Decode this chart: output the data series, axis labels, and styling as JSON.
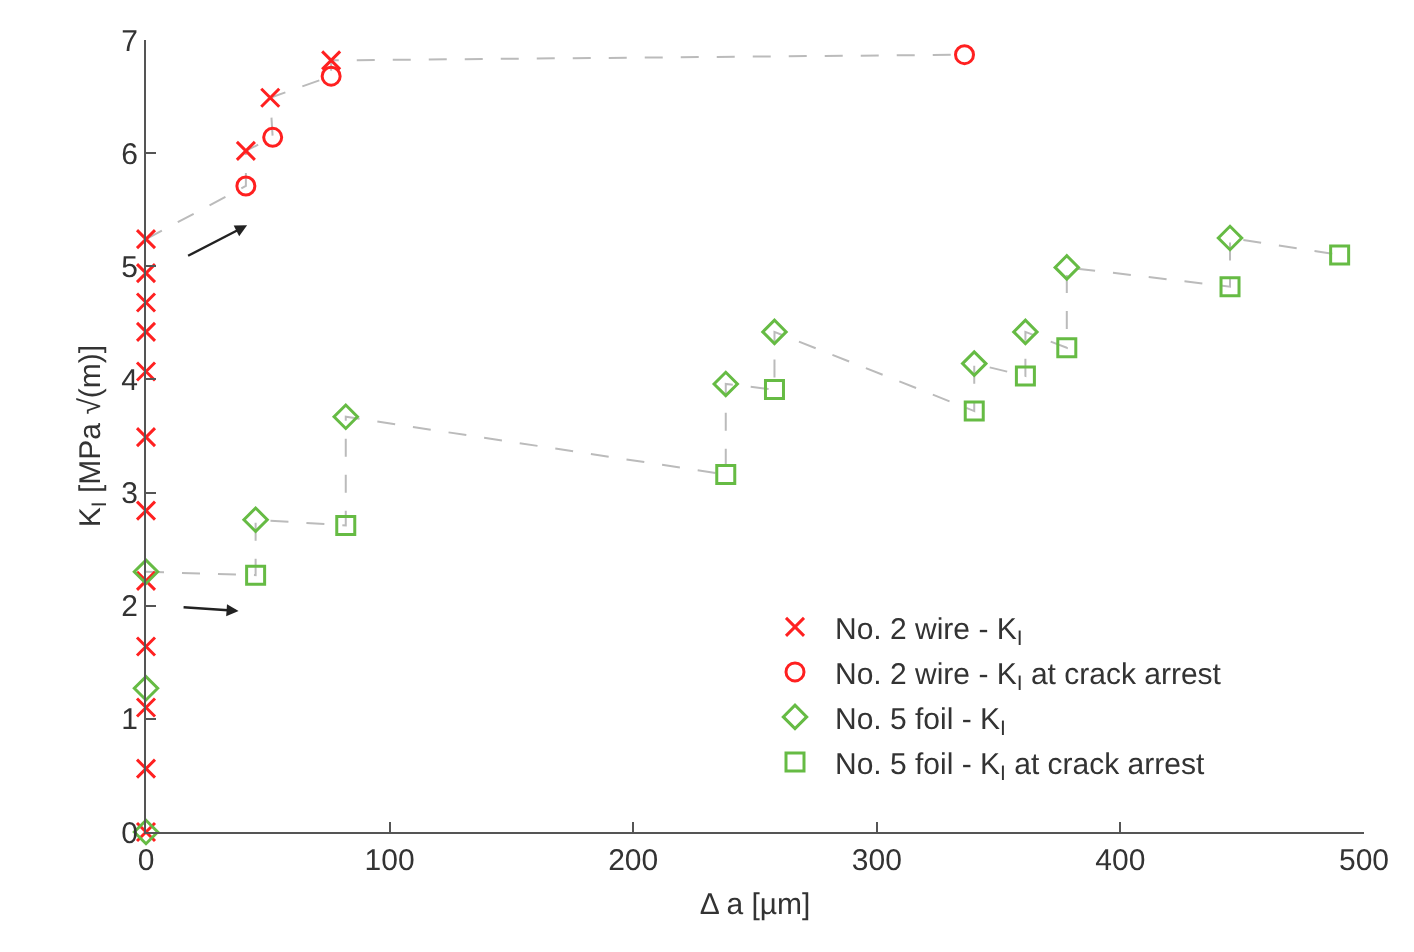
{
  "chart_data": {
    "type": "scatter",
    "xlabel": "Δ a [µm]",
    "ylabel": "K$_{I}$ [MPa √(m)]",
    "xlim": [
      0,
      500
    ],
    "xticks": [
      0,
      100,
      200,
      300,
      400,
      500
    ],
    "ylim": [
      0,
      7
    ],
    "yticks": [
      0,
      1,
      2,
      3,
      4,
      5,
      6,
      7
    ],
    "legend": "bottom right",
    "series": [
      {
        "type": "line",
        "color": "#bbbbbb",
        "marker": "none",
        "line_style": "dashed",
        "x": [
          0,
          41,
          41,
          52,
          51,
          76,
          76,
          336
        ],
        "values": [
          5.24,
          5.71,
          6.02,
          6.14,
          6.49,
          6.68,
          6.82,
          6.87
        ]
      },
      {
        "type": "line",
        "color": "#bbbbbb",
        "marker": "none",
        "line_style": "dashed",
        "x": [
          0,
          45,
          45,
          82,
          82,
          238,
          238,
          258,
          258,
          340,
          340,
          361,
          361,
          378,
          378,
          445,
          445,
          490
        ],
        "values": [
          2.3,
          2.27,
          2.76,
          2.71,
          3.67,
          3.16,
          3.96,
          3.91,
          4.42,
          3.72,
          4.14,
          4.03,
          4.42,
          4.28,
          4.99,
          4.82,
          5.25,
          5.1
        ]
      },
      {
        "name": "No. 2 wire - K$_{I}$",
        "color": "#ff2020",
        "marker": "cross",
        "x": [
          0,
          0,
          0,
          0,
          0,
          0,
          0,
          0,
          0,
          0,
          0,
          0,
          41,
          51,
          76
        ],
        "values": [
          0,
          0.56,
          1.1,
          1.64,
          2.22,
          2.84,
          3.49,
          4.07,
          4.42,
          4.68,
          4.94,
          5.24,
          6.02,
          6.49,
          6.82
        ]
      },
      {
        "name": "No. 2 wire - K$_{I}$ at crack arrest",
        "color": "#ff2020",
        "marker": "circle",
        "x": [
          41,
          52,
          76,
          336
        ],
        "values": [
          5.71,
          6.14,
          6.68,
          6.87
        ]
      },
      {
        "name": "No. 5 foil - K$_{I}$",
        "color": "#66bb44",
        "marker": "diamond",
        "x": [
          0,
          0,
          0,
          45,
          82,
          238,
          258,
          340,
          361,
          378,
          445
        ],
        "values": [
          0,
          1.27,
          2.3,
          2.76,
          3.67,
          3.96,
          4.42,
          4.14,
          4.42,
          4.99,
          5.25
        ]
      },
      {
        "name": "No. 5 foil - K$_{I}$ at crack arrest",
        "color": "#66bb44",
        "marker": "square",
        "x": [
          45,
          82,
          238,
          258,
          340,
          361,
          378,
          445,
          490
        ],
        "values": [
          2.27,
          2.71,
          3.16,
          3.91,
          3.72,
          4.03,
          4.28,
          4.82,
          5.1
        ]
      }
    ]
  }
}
